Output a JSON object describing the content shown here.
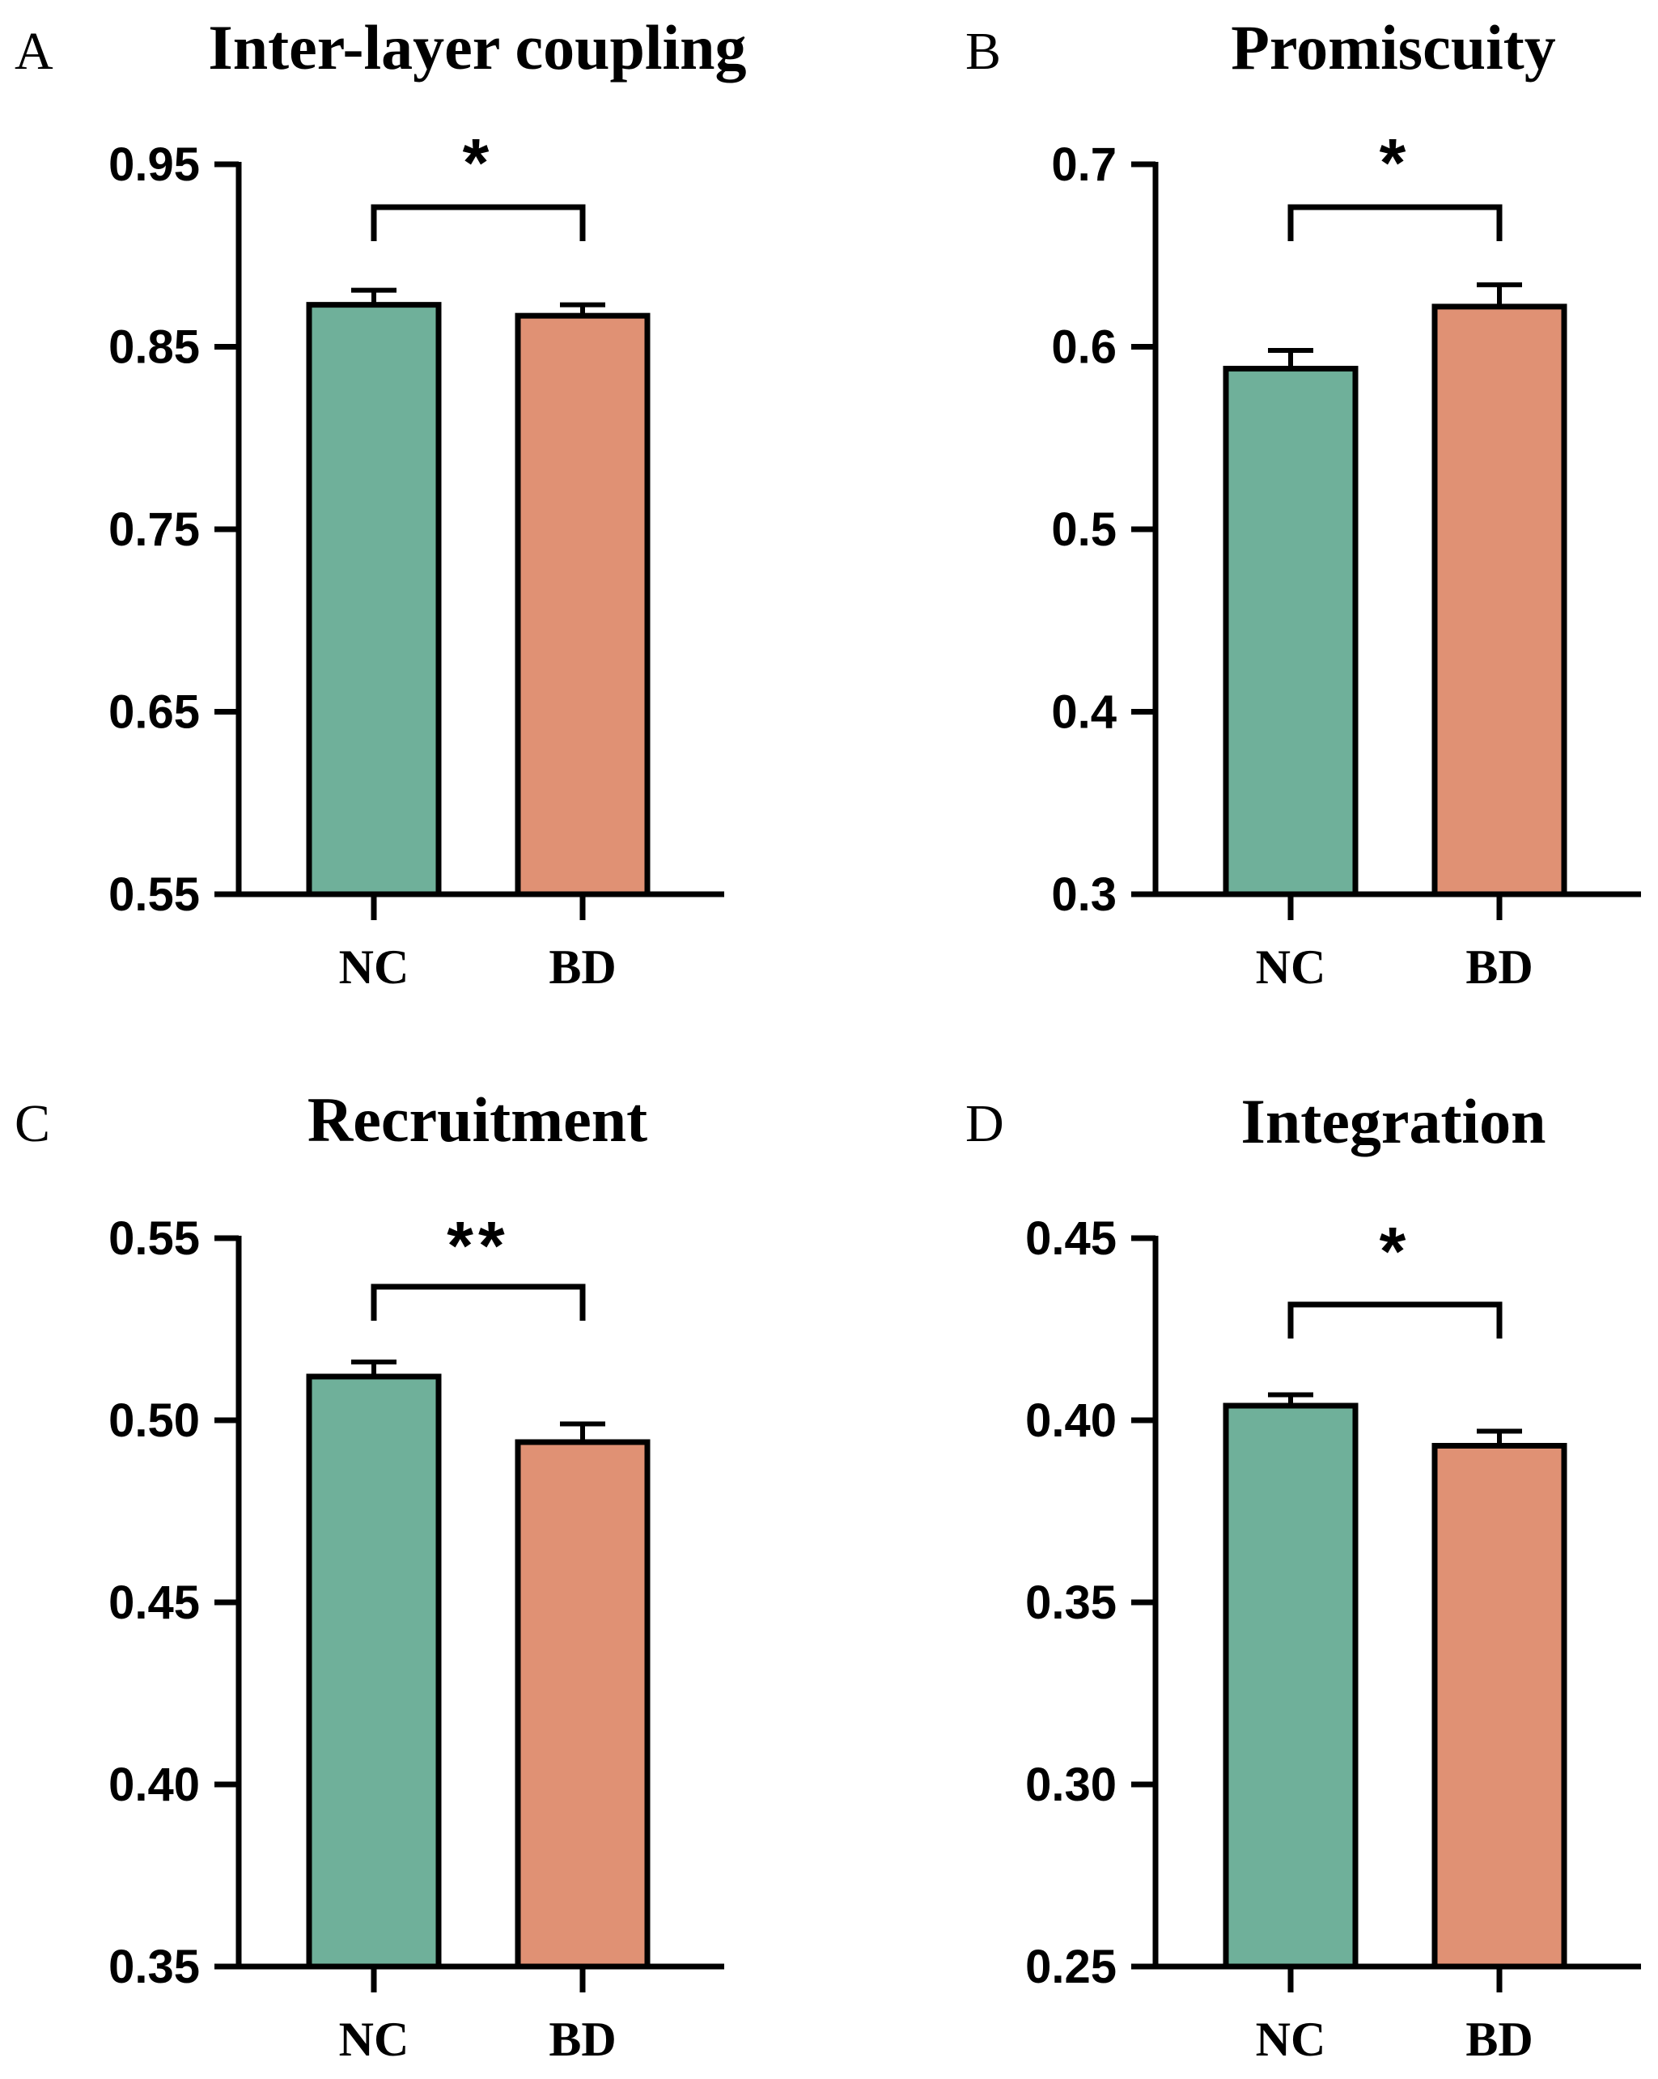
{
  "colors": {
    "NC": "#6fb09a",
    "BD": "#e09174",
    "stroke": "#000000",
    "background": "#ffffff"
  },
  "chart_data": [
    {
      "panel": "A",
      "type": "bar",
      "title": "Inter-layer coupling",
      "xlabel": "",
      "ylabel": "",
      "categories": [
        "NC",
        "BD"
      ],
      "values": [
        0.873,
        0.867
      ],
      "errors": [
        0.008,
        0.006
      ],
      "ylim": [
        0.55,
        0.95
      ],
      "yticks": [
        0.55,
        0.65,
        0.75,
        0.85,
        0.95
      ],
      "ytick_labels": [
        "0.55",
        "0.65",
        "0.75",
        "0.85",
        "0.95"
      ],
      "significance": "*"
    },
    {
      "panel": "B",
      "type": "bar",
      "title": "Promiscuity",
      "xlabel": "",
      "ylabel": "",
      "categories": [
        "NC",
        "BD"
      ],
      "values": [
        0.588,
        0.622
      ],
      "errors": [
        0.01,
        0.012
      ],
      "ylim": [
        0.3,
        0.7
      ],
      "yticks": [
        0.3,
        0.4,
        0.5,
        0.6,
        0.7
      ],
      "ytick_labels": [
        "0.3",
        "0.4",
        "0.5",
        "0.6",
        "0.7"
      ],
      "significance": "*"
    },
    {
      "panel": "C",
      "type": "bar",
      "title": "Recruitment",
      "xlabel": "",
      "ylabel": "",
      "categories": [
        "NC",
        "BD"
      ],
      "values": [
        0.512,
        0.494
      ],
      "errors": [
        0.004,
        0.005
      ],
      "ylim": [
        0.35,
        0.55
      ],
      "yticks": [
        0.35,
        0.4,
        0.45,
        0.5,
        0.55
      ],
      "ytick_labels": [
        "0.35",
        "0.40",
        "0.45",
        "0.50",
        "0.55"
      ],
      "significance": "**"
    },
    {
      "panel": "D",
      "type": "bar",
      "title": "Integration",
      "xlabel": "",
      "ylabel": "",
      "categories": [
        "NC",
        "BD"
      ],
      "values": [
        0.404,
        0.393
      ],
      "errors": [
        0.003,
        0.004
      ],
      "ylim": [
        0.25,
        0.45
      ],
      "yticks": [
        0.25,
        0.3,
        0.35,
        0.4,
        0.45
      ],
      "ytick_labels": [
        "0.25",
        "0.30",
        "0.35",
        "0.40",
        "0.45"
      ],
      "significance": "*"
    }
  ]
}
